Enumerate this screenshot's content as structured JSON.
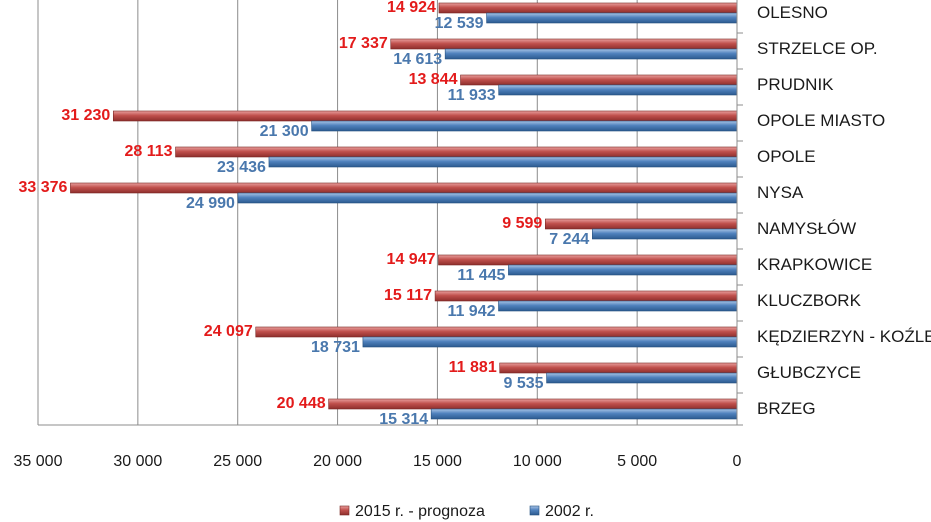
{
  "chart_data": {
    "type": "bar",
    "orientation": "horizontal",
    "title": "",
    "xlabel": "",
    "ylabel": "",
    "categories": [
      "OLESNO",
      "STRZELCE OP.",
      "PRUDNIK",
      "OPOLE MIASTO",
      "OPOLE",
      "NYSA",
      "NAMYSŁÓW",
      "KRAPKOWICE",
      "KLUCZBORK",
      "KĘDZIERZYN - KOŹLE",
      "GŁUBCZYCE",
      "BRZEG"
    ],
    "series": [
      {
        "name": "2015 r. - prognoza",
        "color": "#c0504d",
        "label_color": "#e31b1b",
        "values": [
          14924,
          17337,
          13844,
          31230,
          28113,
          33376,
          9599,
          14947,
          15117,
          24097,
          11881,
          20448
        ],
        "labels": [
          "14 924",
          "17 337",
          "13 844",
          "31 230",
          "28 113",
          "33 376",
          "9 599",
          "14 947",
          "15 117",
          "24 097",
          "11 881",
          "20 448"
        ]
      },
      {
        "name": "2002 r.",
        "color": "#4f81bd",
        "label_color": "#4a78ad",
        "values": [
          12539,
          14613,
          11933,
          21300,
          23436,
          24990,
          7244,
          11445,
          11942,
          18731,
          9535,
          15314
        ],
        "labels": [
          "12 539",
          "14 613",
          "11 933",
          "21 300",
          "23 436",
          "24 990",
          "7 244",
          "11 445",
          "11 942",
          "18 731",
          "9 535",
          "15 314"
        ]
      }
    ],
    "xlim": [
      0,
      35000
    ],
    "x_reversed": true,
    "ticks": [
      35000,
      30000,
      25000,
      20000,
      15000,
      10000,
      5000,
      0
    ],
    "tick_labels": [
      "35 000",
      "30 000",
      "25 000",
      "20 000",
      "15 000",
      "10 000",
      "5 000",
      "0"
    ],
    "grid": true,
    "legend": "bottom",
    "colors": {
      "gridline": "#8c8c8c",
      "axis": "#8c8c8c"
    }
  }
}
